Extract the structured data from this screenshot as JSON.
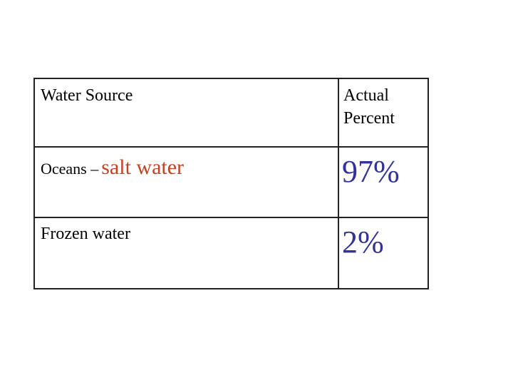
{
  "table": {
    "rows": [
      [
        "Water Source",
        "Actual Percent"
      ],
      [
        [
          "Oceans –",
          "salt water"
        ],
        "97%"
      ],
      [
        "Frozen water",
        "2%"
      ]
    ]
  }
}
